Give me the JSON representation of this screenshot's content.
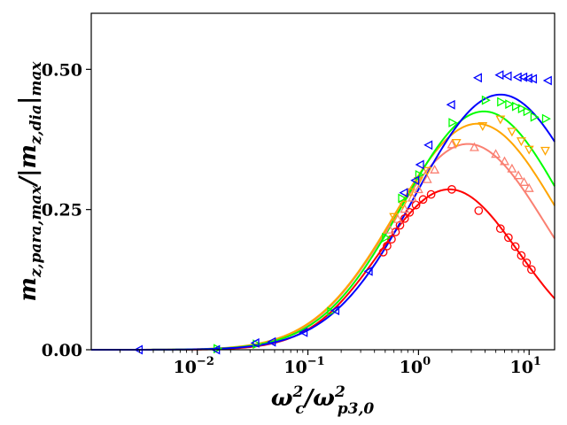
{
  "chart_data": {
    "type": "scatter",
    "title": "",
    "xlabel": "ω_c^2 / ω_p3,0^2",
    "ylabel": "m_z,para,max / |m_z,dia|max",
    "xscale": "log",
    "xlim": [
      0.0011,
      17
    ],
    "ylim": [
      0.0,
      0.6
    ],
    "x_ticks": [
      {
        "value": 0.01,
        "label": "10",
        "exp": "−2"
      },
      {
        "value": 0.1,
        "label": "10",
        "exp": "−1"
      },
      {
        "value": 1,
        "label": "10",
        "exp": "0"
      },
      {
        "value": 10,
        "label": "10",
        "exp": "1"
      }
    ],
    "y_ticks": [
      {
        "value": 0.0,
        "label": "0.00"
      },
      {
        "value": 0.25,
        "label": "0.25"
      },
      {
        "value": 0.5,
        "label": "0.50"
      }
    ],
    "legend": "none",
    "grid": false,
    "series": [
      {
        "name": "red",
        "color": "#ff0000",
        "marker": "circle",
        "curve": {
          "A": 0.286,
          "xp": 1.9,
          "w": 2.05
        },
        "points": [
          [
            0.48,
            0.174
          ],
          [
            0.52,
            0.185
          ],
          [
            0.57,
            0.197
          ],
          [
            0.62,
            0.21
          ],
          [
            0.68,
            0.222
          ],
          [
            0.75,
            0.234
          ],
          [
            0.83,
            0.245
          ],
          [
            0.95,
            0.258
          ],
          [
            1.1,
            0.268
          ],
          [
            1.3,
            0.277
          ],
          [
            2.0,
            0.286
          ],
          [
            3.5,
            0.248
          ],
          [
            5.5,
            0.216
          ],
          [
            6.5,
            0.2
          ],
          [
            7.5,
            0.184
          ],
          [
            8.5,
            0.168
          ],
          [
            9.5,
            0.155
          ],
          [
            10.5,
            0.143
          ]
        ]
      },
      {
        "name": "salmon",
        "color": "#fa8072",
        "marker": "triangle-up",
        "curve": {
          "A": 0.367,
          "xp": 2.8,
          "w": 2.3
        },
        "points": [
          [
            0.55,
            0.213
          ],
          [
            0.65,
            0.232
          ],
          [
            0.75,
            0.25
          ],
          [
            0.88,
            0.27
          ],
          [
            1.0,
            0.285
          ],
          [
            1.2,
            0.303
          ],
          [
            1.4,
            0.32
          ],
          [
            2.0,
            0.365
          ],
          [
            3.2,
            0.36
          ],
          [
            5.0,
            0.348
          ],
          [
            6.0,
            0.335
          ],
          [
            7.0,
            0.322
          ],
          [
            8.0,
            0.31
          ],
          [
            9.0,
            0.298
          ],
          [
            10.0,
            0.287
          ]
        ]
      },
      {
        "name": "orange",
        "color": "#ffa500",
        "marker": "triangle-down",
        "curve": {
          "A": 0.403,
          "xp": 3.4,
          "w": 2.4
        },
        "points": [
          [
            0.6,
            0.238
          ],
          [
            0.72,
            0.26
          ],
          [
            0.85,
            0.282
          ],
          [
            1.0,
            0.302
          ],
          [
            1.2,
            0.32
          ],
          [
            2.2,
            0.37
          ],
          [
            3.8,
            0.4
          ],
          [
            5.5,
            0.412
          ],
          [
            7.0,
            0.39
          ],
          [
            8.5,
            0.373
          ],
          [
            10.0,
            0.358
          ],
          [
            14.0,
            0.356
          ]
        ]
      },
      {
        "name": "green",
        "color": "#00ff00",
        "marker": "triangle-right",
        "curve": {
          "A": 0.425,
          "xp": 3.9,
          "w": 2.4
        },
        "points": [
          [
            0.015,
            0.002
          ],
          [
            0.034,
            0.01
          ],
          [
            0.16,
            0.068
          ],
          [
            0.5,
            0.2
          ],
          [
            0.7,
            0.27
          ],
          [
            1.0,
            0.312
          ],
          [
            2.0,
            0.405
          ],
          [
            4.0,
            0.445
          ],
          [
            5.5,
            0.442
          ],
          [
            6.5,
            0.438
          ],
          [
            7.5,
            0.434
          ],
          [
            8.5,
            0.43
          ],
          [
            9.5,
            0.425
          ],
          [
            11.0,
            0.415
          ],
          [
            14.0,
            0.412
          ]
        ]
      },
      {
        "name": "blue",
        "color": "#0000ff",
        "marker": "triangle-left",
        "curve": {
          "A": 0.455,
          "xp": 5.5,
          "w": 2.5
        },
        "points": [
          [
            0.003,
            0.0
          ],
          [
            0.015,
            0.0
          ],
          [
            0.034,
            0.012
          ],
          [
            0.048,
            0.014
          ],
          [
            0.093,
            0.031
          ],
          [
            0.18,
            0.07
          ],
          [
            0.36,
            0.14
          ],
          [
            0.75,
            0.28
          ],
          [
            0.95,
            0.302
          ],
          [
            1.05,
            0.33
          ],
          [
            1.25,
            0.365
          ],
          [
            2.0,
            0.437
          ],
          [
            3.5,
            0.485
          ],
          [
            5.5,
            0.49
          ],
          [
            6.5,
            0.488
          ],
          [
            8.0,
            0.486
          ],
          [
            9.0,
            0.486
          ],
          [
            10.0,
            0.484
          ],
          [
            11.0,
            0.483
          ],
          [
            15.0,
            0.48
          ]
        ]
      }
    ]
  }
}
